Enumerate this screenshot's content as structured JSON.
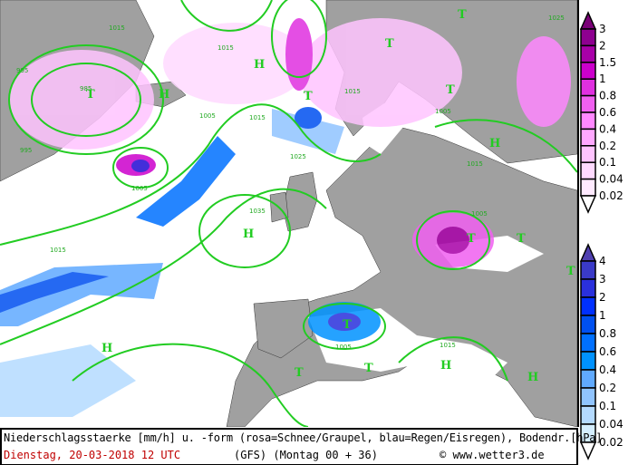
{
  "caption": {
    "title": "Niederschlagsstaerke [mm/h] u. -form (rosa=Schnee/Graupel, blau=Regen/Eisregen), Bodendr.[hPa]",
    "valid_time": "Dienstag, 20-03-2018  12 UTC",
    "model_run": "(GFS)  (Montag 00 + 36)",
    "copyright": "© www.wetter3.de"
  },
  "legend_snow": {
    "labels": [
      "3",
      "2",
      "1.5",
      "1",
      "0.8",
      "0.6",
      "0.4",
      "0.2",
      "0.1",
      "0.04",
      "0.02"
    ],
    "colors": [
      "#7a0077",
      "#8e0090",
      "#a800a8",
      "#cc00cc",
      "#e030e0",
      "#f060f0",
      "#ff88ff",
      "#ffa8ff",
      "#ffc4ff",
      "#ffdaff",
      "#ffeaff",
      "#ffffff"
    ]
  },
  "legend_rain": {
    "labels": [
      "4",
      "3",
      "2",
      "1",
      "0.8",
      "0.6",
      "0.4",
      "0.2",
      "0.1",
      "0.04",
      "0.02"
    ],
    "colors": [
      "#5040b0",
      "#3a3ac8",
      "#2a30dc",
      "#0030ff",
      "#0050f0",
      "#0070ff",
      "#0092ff",
      "#60aaff",
      "#90c4ff",
      "#b4daff",
      "#d4eeff",
      "#ffffff"
    ]
  },
  "map": {
    "colors": {
      "land": "#a0a0a0",
      "sea": "#ffffff",
      "isobar": "#22cc22"
    },
    "pressure_centers": [
      "H",
      "H",
      "H",
      "H",
      "H",
      "H",
      "H",
      "T",
      "T",
      "T",
      "T",
      "T",
      "T",
      "T",
      "T",
      "T",
      "T",
      "T"
    ],
    "isobar_labels": [
      "1015",
      "995",
      "985",
      "995",
      "1005",
      "1005",
      "1015",
      "1015",
      "1025",
      "1035",
      "1015",
      "1005",
      "1015",
      "1015",
      "1005",
      "1005",
      "1015",
      "1025"
    ]
  }
}
